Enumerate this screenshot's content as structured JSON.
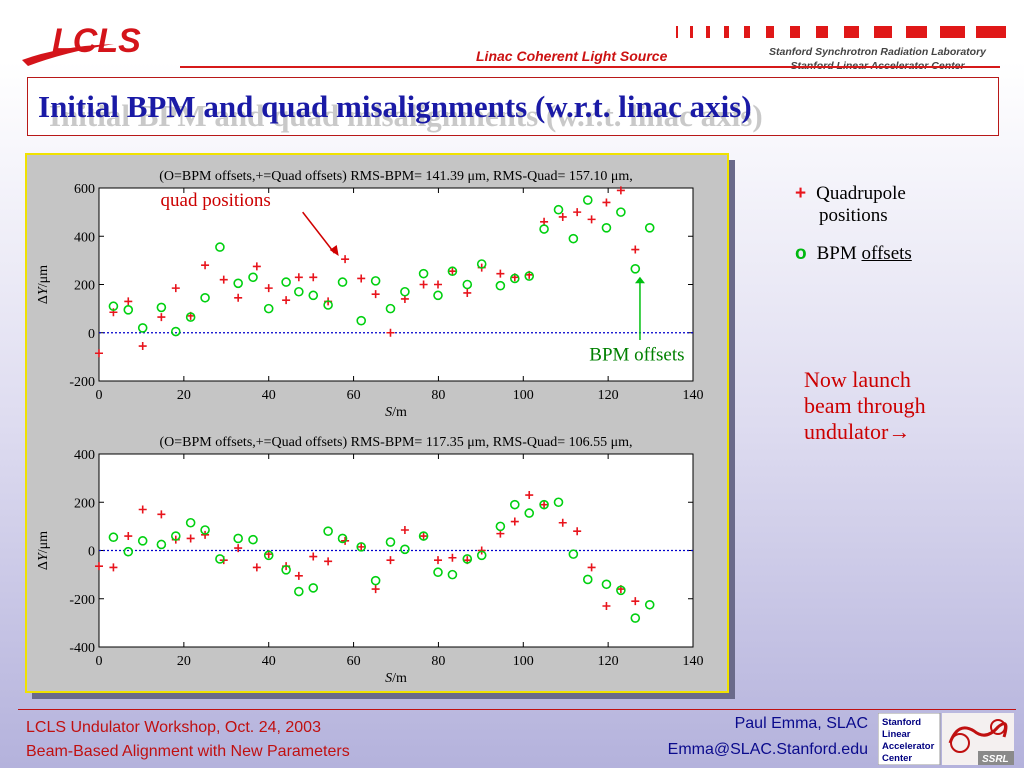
{
  "header": {
    "logo_text": "LCLS",
    "subtitle": "Linac Coherent Light Source",
    "lab_line1": "Stanford Synchrotron Radiation Laboratory",
    "lab_line2": "Stanford Linear Accelerator Center"
  },
  "title": "Initial BPM and quad misalignments (w.r.t. linac axis)",
  "legend": {
    "quad_mark": "+",
    "quad_line1": "Quadrupole",
    "quad_line2": "positions",
    "bpm_mark": "o",
    "bpm_text_plain": "BPM ",
    "bpm_text_underlined": "offsets"
  },
  "note": [
    "Now launch",
    "beam through",
    "undulator→"
  ],
  "annotations": {
    "quad": "quad positions",
    "bpm": "BPM offsets"
  },
  "footer": {
    "left_line1": "LCLS Undulator Workshop, Oct. 24, 2003",
    "left_line2": "Beam-Based Alignment with New Parameters",
    "right_line1": "Paul Emma, SLAC",
    "right_line2": "Emma@SLAC.Stanford.edu",
    "logo_letters": [
      "Stanford",
      "Linear",
      "Accelerator",
      "Center"
    ],
    "badge": "SSRL"
  },
  "colors": {
    "quad": "#e8141c",
    "bpm": "#00d010",
    "zero_line": "#0000cc",
    "title": "#1a1aa6",
    "accent_red": "#c01010"
  },
  "chart_data": [
    {
      "type": "scatter",
      "title": "(O=BPM offsets,+=Quad offsets) RMS-BPM= 141.39 μm, RMS-Quad= 157.10 μm,",
      "xlabel": "S/m",
      "ylabel": "ΔY/μm",
      "xlim": [
        0,
        140
      ],
      "ylim": [
        -200,
        600
      ],
      "xticks": [
        0,
        20,
        40,
        60,
        80,
        100,
        120,
        140
      ],
      "yticks": [
        -200,
        0,
        200,
        400,
        600
      ],
      "series": [
        {
          "name": "Quad offsets",
          "marker": "+",
          "x": [
            0.0,
            3.4,
            6.9,
            10.3,
            14.7,
            18.1,
            21.6,
            25.0,
            29.4,
            32.8,
            37.2,
            40.0,
            44.1,
            47.1,
            50.5,
            54.0,
            58.0,
            61.8,
            65.2,
            68.7,
            72.1,
            76.5,
            79.9,
            83.3,
            86.8,
            90.2,
            94.6,
            98.0,
            101.4,
            104.9,
            109.3,
            112.7,
            116.1,
            119.6,
            123.0,
            126.4
          ],
          "y": [
            -85,
            85,
            130,
            -55,
            65,
            185,
            70,
            280,
            220,
            145,
            275,
            185,
            135,
            230,
            230,
            130,
            305,
            225,
            160,
            0,
            140,
            200,
            200,
            255,
            165,
            270,
            245,
            230,
            240,
            460,
            480,
            500,
            470,
            540,
            590,
            345
          ]
        },
        {
          "name": "BPM offsets",
          "marker": "o",
          "x": [
            3.4,
            6.9,
            10.3,
            14.7,
            18.1,
            21.6,
            25.0,
            28.5,
            32.8,
            36.3,
            40.0,
            44.1,
            47.1,
            50.5,
            54.0,
            57.4,
            61.8,
            65.2,
            68.7,
            72.1,
            76.5,
            79.9,
            83.3,
            86.8,
            90.2,
            94.6,
            98.0,
            101.4,
            104.9,
            108.3,
            111.8,
            115.2,
            119.6,
            123.0,
            126.4,
            129.8
          ],
          "y": [
            110,
            95,
            20,
            105,
            5,
            65,
            145,
            355,
            205,
            230,
            100,
            210,
            170,
            155,
            115,
            210,
            50,
            215,
            100,
            170,
            245,
            155,
            255,
            200,
            285,
            195,
            225,
            235,
            430,
            510,
            390,
            550,
            435,
            500,
            265,
            435
          ]
        }
      ]
    },
    {
      "type": "scatter",
      "title": "(O=BPM offsets,+=Quad offsets) RMS-BPM= 117.35 μm, RMS-Quad= 106.55 μm,",
      "xlabel": "S/m",
      "ylabel": "ΔY/μm",
      "xlim": [
        0,
        140
      ],
      "ylim": [
        -400,
        400
      ],
      "xticks": [
        0,
        20,
        40,
        60,
        80,
        100,
        120,
        140
      ],
      "yticks": [
        -400,
        -200,
        0,
        200,
        400
      ],
      "series": [
        {
          "name": "Quad offsets",
          "marker": "+",
          "x": [
            0.0,
            3.4,
            6.9,
            10.3,
            14.7,
            18.1,
            21.6,
            25.0,
            29.4,
            32.8,
            37.2,
            40.0,
            44.1,
            47.1,
            50.5,
            54.0,
            58.0,
            61.8,
            65.2,
            68.7,
            72.1,
            76.5,
            79.9,
            83.3,
            86.8,
            90.2,
            94.6,
            98.0,
            101.4,
            104.9,
            109.3,
            112.7,
            116.1,
            119.6,
            123.0,
            126.4
          ],
          "y": [
            -65,
            -70,
            60,
            170,
            150,
            45,
            50,
            65,
            -40,
            10,
            -70,
            -15,
            -65,
            -105,
            -25,
            -45,
            40,
            15,
            -160,
            -40,
            85,
            60,
            -40,
            -30,
            -40,
            0,
            70,
            120,
            230,
            190,
            115,
            80,
            -70,
            -230,
            -160,
            -210
          ]
        },
        {
          "name": "BPM offsets",
          "marker": "o",
          "x": [
            3.4,
            6.9,
            10.3,
            14.7,
            18.1,
            21.6,
            25.0,
            28.5,
            32.8,
            36.3,
            40.0,
            44.1,
            47.1,
            50.5,
            54.0,
            57.4,
            61.8,
            65.2,
            68.7,
            72.1,
            76.5,
            79.9,
            83.3,
            86.8,
            90.2,
            94.6,
            98.0,
            101.4,
            104.9,
            108.3,
            111.8,
            115.2,
            119.6,
            123.0,
            126.4,
            129.8
          ],
          "y": [
            55,
            -5,
            40,
            25,
            60,
            115,
            85,
            -35,
            50,
            45,
            -20,
            -80,
            -170,
            -155,
            80,
            50,
            15,
            -125,
            35,
            5,
            60,
            -90,
            -100,
            -35,
            -20,
            100,
            190,
            155,
            190,
            200,
            -15,
            -120,
            -140,
            -165,
            -280,
            -225
          ]
        }
      ]
    }
  ]
}
